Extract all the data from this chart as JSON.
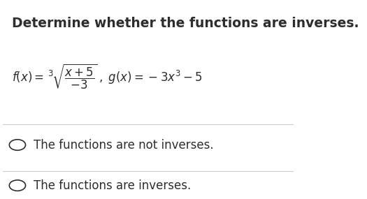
{
  "title": "Determine whether the functions are inverses.",
  "title_fontsize": 13.5,
  "title_color": "#2d2d2d",
  "title_bold": true,
  "option1": "The functions are not inverses.",
  "option2": "The functions are inverses.",
  "bg_color": "#ffffff",
  "text_color": "#2d2d2d",
  "option_fontsize": 12,
  "separator_color": "#cccccc"
}
